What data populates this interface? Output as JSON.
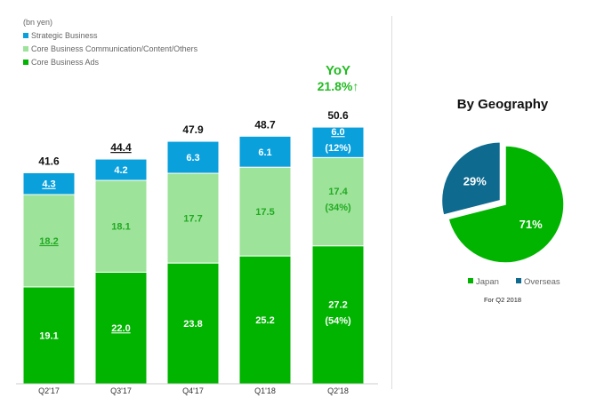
{
  "chart_data": [
    {
      "type": "bar",
      "stacked": true,
      "unit_label": "(bn yen)",
      "categories": [
        "Q2'17",
        "Q3'17",
        "Q4'17",
        "Q1'18",
        "Q2'18"
      ],
      "series": [
        {
          "name": "Core Business Ads",
          "color": "#00b400",
          "values": [
            19.1,
            22.0,
            23.8,
            25.2,
            27.2
          ],
          "labels": [
            "19.1",
            "22.0",
            "23.8",
            "25.2",
            "27.2"
          ]
        },
        {
          "name": "Core Business Communication/Content/Others",
          "color": "#9de39a",
          "values": [
            18.2,
            18.1,
            17.7,
            17.5,
            17.4
          ],
          "labels": [
            "18.2",
            "18.1",
            "17.7",
            "17.5",
            "17.4"
          ]
        },
        {
          "name": "Strategic Business",
          "color": "#0aa0dc",
          "values": [
            4.3,
            4.2,
            6.3,
            6.1,
            6.0
          ],
          "labels": [
            "4.3",
            "4.2",
            "6.3",
            "6.1",
            "6.0"
          ]
        }
      ],
      "share_labels": {
        "Core Business Ads": "(54%)",
        "Core Business Communication/Content/Others": "(34%)",
        "Strategic Business": "(12%)"
      },
      "totals": [
        "41.6",
        "44.4",
        "47.9",
        "48.7",
        "50.6"
      ],
      "annotation": {
        "line1": "YoY",
        "line2": "21.8%↑",
        "color": "#22bb22"
      },
      "legend_order": [
        "Strategic Business",
        "Core Business Communication/Content/Others",
        "Core Business Ads"
      ],
      "legend_placement": "top-left",
      "grid": false
    },
    {
      "type": "pie",
      "title": "By Geography",
      "slices": [
        {
          "name": "Japan",
          "value": 71,
          "label": "71%",
          "color": "#00b400"
        },
        {
          "name": "Overseas",
          "value": 29,
          "label": "29%",
          "color": "#0e6a8e"
        }
      ],
      "footnote": "For Q2 2018",
      "legend_placement": "bottom"
    }
  ]
}
